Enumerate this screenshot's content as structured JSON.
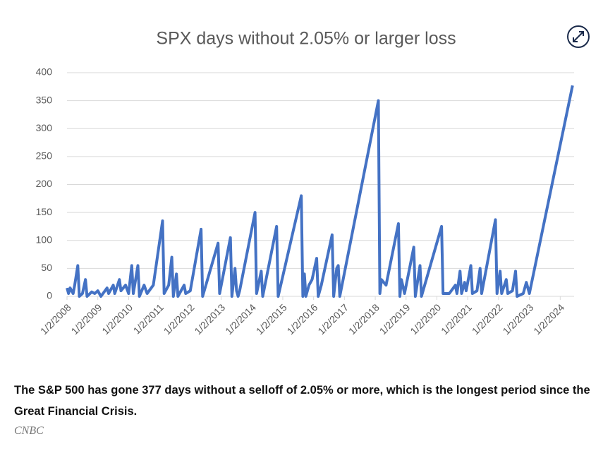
{
  "chart_data": {
    "type": "line",
    "title": "SPX days without 2.05% or larger loss",
    "color": "#4472c4",
    "x": [
      2008.0,
      2008.05,
      2008.1,
      2008.2,
      2008.25,
      2008.35,
      2008.4,
      2008.5,
      2008.6,
      2008.65,
      2008.8,
      2008.9,
      2009.0,
      2009.1,
      2009.3,
      2009.35,
      2009.5,
      2009.55,
      2009.7,
      2009.75,
      2009.9,
      2010.0,
      2010.1,
      2010.15,
      2010.3,
      2010.35,
      2010.5,
      2010.6,
      2010.8,
      2011.1,
      2011.15,
      2011.3,
      2011.4,
      2011.45,
      2011.55,
      2011.6,
      2011.8,
      2011.85,
      2012.0,
      2012.35,
      2012.4,
      2012.9,
      2012.95,
      2013.3,
      2013.35,
      2013.45,
      2013.5,
      2013.55,
      2013.6,
      2014.1,
      2014.15,
      2014.3,
      2014.35,
      2014.8,
      2014.85,
      2015.6,
      2015.65,
      2015.7,
      2015.75,
      2015.85,
      2015.95,
      2016.1,
      2016.15,
      2016.25,
      2016.6,
      2016.65,
      2016.75,
      2016.8,
      2016.85,
      2018.1,
      2018.15,
      2018.2,
      2018.35,
      2018.75,
      2018.8,
      2018.85,
      2018.95,
      2019.25,
      2019.3,
      2019.45,
      2019.5,
      2020.15,
      2020.2,
      2020.4,
      2020.6,
      2020.65,
      2020.75,
      2020.8,
      2020.9,
      2020.95,
      2021.1,
      2021.15,
      2021.3,
      2021.4,
      2021.45,
      2021.9,
      2021.95,
      2022.05,
      2022.1,
      2022.25,
      2022.3,
      2022.45,
      2022.55,
      2022.6,
      2022.8,
      2022.9,
      2023.0,
      2024.4
    ],
    "values": [
      15,
      5,
      15,
      5,
      20,
      55,
      0,
      5,
      30,
      0,
      8,
      5,
      10,
      0,
      15,
      5,
      20,
      5,
      30,
      10,
      20,
      5,
      55,
      5,
      55,
      0,
      20,
      5,
      20,
      135,
      5,
      20,
      70,
      0,
      40,
      0,
      20,
      5,
      10,
      120,
      0,
      95,
      5,
      105,
      0,
      50,
      10,
      0,
      10,
      150,
      5,
      45,
      0,
      125,
      0,
      180,
      0,
      40,
      0,
      20,
      30,
      68,
      0,
      20,
      110,
      0,
      50,
      55,
      0,
      350,
      5,
      30,
      20,
      130,
      0,
      30,
      5,
      88,
      0,
      55,
      0,
      125,
      5,
      5,
      20,
      5,
      45,
      5,
      25,
      10,
      55,
      5,
      10,
      50,
      5,
      137,
      5,
      45,
      5,
      30,
      5,
      10,
      45,
      0,
      5,
      25,
      5,
      377
    ],
    "xlim": [
      2008,
      2024.45
    ],
    "xticks": [
      {
        "value": 2008,
        "label": "1/2/2008"
      },
      {
        "value": 2009,
        "label": "1/2/2009"
      },
      {
        "value": 2010,
        "label": "1/2/2010"
      },
      {
        "value": 2011,
        "label": "1/2/2011"
      },
      {
        "value": 2012,
        "label": "1/2/2012"
      },
      {
        "value": 2013,
        "label": "1/2/2013"
      },
      {
        "value": 2014,
        "label": "1/2/2014"
      },
      {
        "value": 2015,
        "label": "1/2/2015"
      },
      {
        "value": 2016,
        "label": "1/2/2016"
      },
      {
        "value": 2017,
        "label": "1/2/2017"
      },
      {
        "value": 2018,
        "label": "1/2/2018"
      },
      {
        "value": 2019,
        "label": "1/2/2019"
      },
      {
        "value": 2020,
        "label": "1/2/2020"
      },
      {
        "value": 2021,
        "label": "1/2/2021"
      },
      {
        "value": 2022,
        "label": "1/2/2022"
      },
      {
        "value": 2023,
        "label": "1/2/2023"
      },
      {
        "value": 2024,
        "label": "1/2/2024"
      }
    ],
    "ylim": [
      0,
      400
    ],
    "yticks": [
      0,
      50,
      100,
      150,
      200,
      250,
      300,
      350,
      400
    ],
    "grid": true
  },
  "caption": "The S&P 500 has gone 377 days without a selloff of 2.05% or more, which is the longest period since the Great Financial Crisis.",
  "credit": "CNBC"
}
